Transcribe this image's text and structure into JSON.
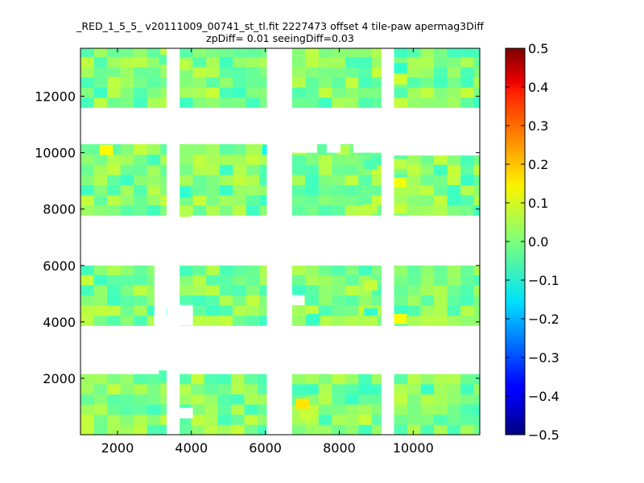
{
  "chart_data": {
    "type": "heatmap",
    "title_lines": [
      "_RED_1_5_5_ v20111009_00741_st_tl.fit 2227473 offset 4 tile-paw apermag3Diff",
      "zpDiff= 0.01 seeingDiff=0.03"
    ],
    "xlim": [
      1000,
      11800
    ],
    "ylim": [
      0,
      13700
    ],
    "x_ticks": [
      2000,
      4000,
      6000,
      8000,
      10000
    ],
    "y_ticks": [
      2000,
      4000,
      6000,
      8000,
      10000,
      12000
    ],
    "colorbar": {
      "colormap": "jet",
      "range": [
        -0.5,
        0.5
      ],
      "ticks": [
        0.5,
        0.4,
        0.3,
        0.2,
        0.1,
        0.0,
        -0.1,
        -0.2,
        -0.3,
        -0.4,
        -0.5
      ],
      "tick_labels": [
        "0.5",
        "0.4",
        "0.3",
        "0.2",
        "0.1",
        "0.0",
        "−0.1",
        "−0.2",
        "−0.3",
        "−0.4",
        "−0.5"
      ]
    },
    "cell_size": [
      360,
      360
    ],
    "base_value": 0.0,
    "rows": [
      {
        "y": [
          0,
          2150
        ],
        "x": [
          [
            1000,
            3330
          ],
          [
            3680,
            3990
          ],
          [
            3990,
            6040
          ],
          [
            6720,
            9140
          ],
          [
            9480,
            11800
          ]
        ]
      },
      {
        "y": [
          3870,
          6000
        ],
        "x": [
          [
            1000,
            2990
          ],
          [
            3680,
            6040
          ],
          [
            6720,
            9140
          ],
          [
            9480,
            11800
          ]
        ]
      },
      {
        "y": [
          7780,
          10300
        ],
        "x": [
          [
            1000,
            3330
          ],
          [
            3680,
            6040
          ],
          [
            6720,
            9140
          ],
          [
            9480,
            11800
          ]
        ]
      },
      {
        "y": [
          11600,
          13700
        ],
        "x": [
          [
            1000,
            3330
          ],
          [
            3680,
            6040
          ],
          [
            6720,
            9140
          ],
          [
            9480,
            11800
          ]
        ]
      }
    ],
    "white_gaps": [
      {
        "x": [
          6720,
          7400
        ],
        "y": [
          10000,
          10300
        ]
      },
      {
        "x": [
          7660,
          8030
        ],
        "y": [
          10000,
          10300
        ]
      },
      {
        "x": [
          8380,
          11800
        ],
        "y": [
          10000,
          10300
        ]
      },
      {
        "x": [
          9480,
          11800
        ],
        "y": [
          9900,
          10300
        ]
      },
      {
        "x": [
          2990,
          3330
        ],
        "y": [
          3870,
          4230
        ]
      },
      {
        "x": [
          6720,
          7060
        ],
        "y": [
          4590,
          4950
        ]
      },
      {
        "x": [
          3680,
          4040
        ],
        "y": [
          3870,
          4600
        ]
      },
      {
        "x": [
          3680,
          4040
        ],
        "y": [
          580,
          950
        ]
      },
      {
        "x": [
          6040,
          6720
        ],
        "y": [
          0,
          13700
        ]
      },
      {
        "x": [
          9140,
          9480
        ],
        "y": [
          0,
          13700
        ]
      },
      {
        "x": [
          3330,
          3680
        ],
        "y": [
          0,
          13700
        ]
      },
      {
        "x": [
          3330,
          3680
        ],
        "y": [
          0,
          13700
        ]
      }
    ],
    "highlight_cells": [
      {
        "x": 1700,
        "y": 10100,
        "v": 0.13
      },
      {
        "x": 1900,
        "y": 12500,
        "v": 0.06
      },
      {
        "x": 3500,
        "y": 4300,
        "v": -0.1
      },
      {
        "x": 3800,
        "y": 8600,
        "v": -0.08
      },
      {
        "x": 3850,
        "y": 5800,
        "v": -0.06
      },
      {
        "x": 6100,
        "y": 10100,
        "v": -0.12
      },
      {
        "x": 6950,
        "y": 10100,
        "v": 0.06
      },
      {
        "x": 7300,
        "y": 4100,
        "v": -0.07
      },
      {
        "x": 7000,
        "y": 1100,
        "v": 0.15
      },
      {
        "x": 7100,
        "y": 700,
        "v": 0.07
      },
      {
        "x": 8100,
        "y": 10100,
        "v": 0.05
      },
      {
        "x": 8850,
        "y": 5300,
        "v": 0.07
      },
      {
        "x": 8850,
        "y": 4300,
        "v": -0.08
      },
      {
        "x": 8850,
        "y": 4050,
        "v": 0.05
      },
      {
        "x": 8850,
        "y": 9600,
        "v": -0.05
      },
      {
        "x": 8850,
        "y": 8000,
        "v": 0.06
      },
      {
        "x": 9650,
        "y": 13000,
        "v": -0.08
      },
      {
        "x": 9650,
        "y": 12600,
        "v": 0.08
      },
      {
        "x": 9650,
        "y": 9600,
        "v": 0.06
      },
      {
        "x": 9650,
        "y": 8950,
        "v": 0.11
      },
      {
        "x": 9650,
        "y": 8000,
        "v": 0.07
      },
      {
        "x": 9650,
        "y": 4100,
        "v": 0.12
      },
      {
        "x": 3300,
        "y": 2100,
        "v": -0.05
      },
      {
        "x": 3800,
        "y": 13100,
        "v": 0.06
      },
      {
        "x": 3800,
        "y": 7900,
        "v": 0.05
      },
      {
        "x": 3300,
        "y": 13300,
        "v": -0.04
      }
    ]
  }
}
